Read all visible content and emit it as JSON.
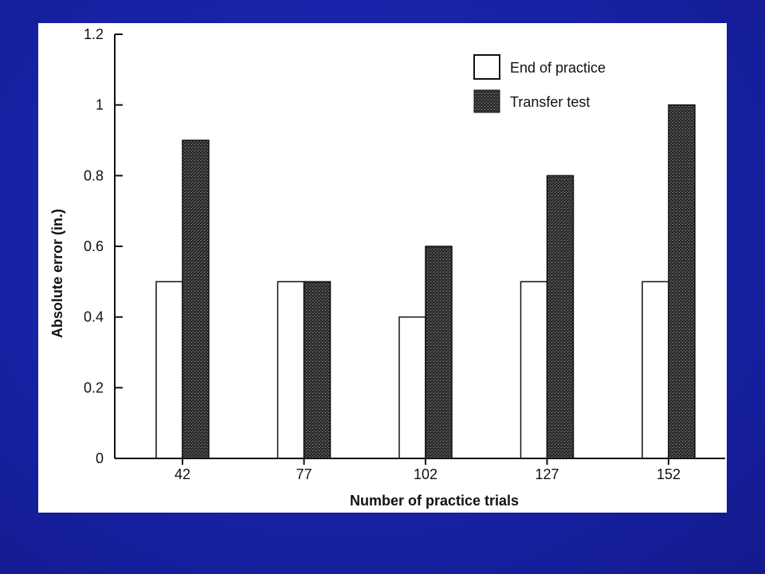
{
  "slide": {
    "background_color": "#1a24a8"
  },
  "chart_data": {
    "type": "bar",
    "title": "",
    "xlabel": "Number of practice trials",
    "ylabel": "Absolute error (in.)",
    "categories": [
      "42",
      "77",
      "102",
      "127",
      "152"
    ],
    "series": [
      {
        "name": "End of practice",
        "values": [
          0.5,
          0.5,
          0.4,
          0.5,
          0.5
        ],
        "fill": "#ffffff"
      },
      {
        "name": "Transfer test",
        "values": [
          0.9,
          0.5,
          0.6,
          0.8,
          1.0
        ],
        "fill": "#2a2a2a"
      }
    ],
    "ylim": [
      0,
      1.2
    ],
    "yticks": [
      0,
      0.2,
      0.4,
      0.6,
      0.8,
      1,
      1.2
    ],
    "ytick_labels": [
      "0",
      "0.2",
      "0.4",
      "0.6",
      "0.8",
      "1",
      "1.2"
    ],
    "grid": false,
    "legend_position": "top-right"
  }
}
